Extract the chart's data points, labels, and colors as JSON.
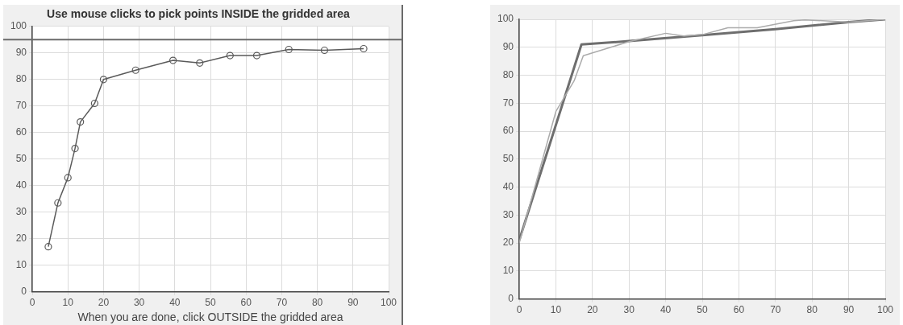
{
  "chart_data": [
    {
      "type": "line",
      "title": "Use mouse clicks to pick points INSIDE the gridded area",
      "xlabel": "When you are done, click OUTSIDE the gridded area",
      "xlim": [
        0,
        100
      ],
      "xticks": [
        0,
        10,
        20,
        30,
        40,
        50,
        60,
        70,
        80,
        90,
        100
      ],
      "ylim": [
        0,
        100
      ],
      "yticks": [
        0,
        10,
        20,
        30,
        40,
        50,
        60,
        70,
        80,
        90,
        100
      ],
      "grid": true,
      "marker": "circle",
      "line_style": "solid",
      "series": [
        {
          "color": "#5a5a5a",
          "x": [
            4.5,
            7.2,
            10,
            12,
            13.5,
            17.5,
            20,
            29,
            39.5,
            47,
            55.5,
            63,
            72,
            82,
            93
          ],
          "values": [
            17,
            33.5,
            43,
            54,
            64,
            71,
            80,
            83.5,
            87.2,
            86.2,
            89,
            89,
            91.3,
            91,
            91.6
          ]
        }
      ],
      "ref_lines": [
        {
          "axis": "y",
          "value": 95,
          "color": "#6a6a6a"
        }
      ]
    },
    {
      "type": "line",
      "xlim": [
        0,
        100
      ],
      "xticks": [
        0,
        10,
        20,
        30,
        40,
        50,
        60,
        70,
        80,
        90,
        100
      ],
      "ylim": [
        0,
        100
      ],
      "yticks": [
        0,
        10,
        20,
        30,
        40,
        50,
        60,
        70,
        80,
        90,
        100
      ],
      "grid": true,
      "marker": "none",
      "line_style": "solid",
      "series": [
        {
          "color": "#ababab",
          "x": [
            0,
            10,
            15,
            17.5,
            25,
            30,
            40,
            45,
            50,
            57,
            65,
            75,
            78,
            90,
            100
          ],
          "values": [
            20,
            67,
            78,
            87,
            90,
            92,
            95,
            94,
            94.5,
            97,
            97,
            99.5,
            99.8,
            99,
            100
          ]
        },
        {
          "color": "#6e6e6e",
          "x": [
            0,
            17,
            30,
            50,
            70,
            90,
            100
          ],
          "values": [
            21,
            91,
            92.2,
            94.3,
            96.5,
            99,
            100
          ]
        }
      ]
    }
  ]
}
